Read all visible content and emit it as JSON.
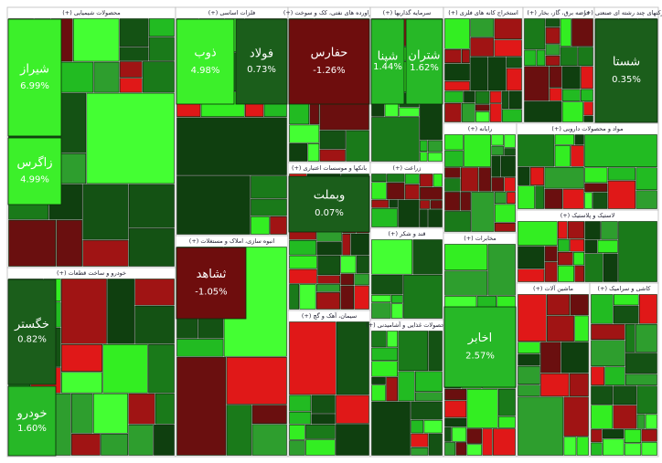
{
  "chart_data": {
    "type": "treemap",
    "sectors": [
      {
        "name": "محصولات شیمیایی (+)",
        "labels": [
          "شیراز",
          "زاگرس"
        ],
        "values": [
          6.99,
          4.99
        ],
        "value_labels": [
          "6.99%",
          "4.99%"
        ]
      },
      {
        "name": "فلزات اساسی (+)",
        "labels": [
          "ذوب",
          "فولاد"
        ],
        "values": [
          4.98,
          0.73
        ],
        "value_labels": [
          "4.98%",
          "0.73%"
        ]
      },
      {
        "name": "فراورده های نفتی، کک و سوخت (+)",
        "labels": [
          "حفارس"
        ],
        "values": [
          -1.26
        ],
        "value_labels": [
          "-1.26%"
        ]
      },
      {
        "name": "سرمایه گذاریها (+)",
        "labels": [
          "شپنا",
          "شتران"
        ],
        "values": [
          1.44,
          1.62
        ],
        "value_labels": [
          "1.44%",
          "1.62%"
        ]
      },
      {
        "name": "استخراج کانه های فلزی (+)"
      },
      {
        "name": "عرضه برق، گاز، بخار (+)"
      },
      {
        "name": "شرکتهای چند رشته ای صنعتی (+)",
        "labels": [
          "شستا"
        ],
        "values": [
          0.35
        ],
        "value_labels": [
          "0.35%"
        ]
      },
      {
        "name": "خودرو و ساخت قطعات (+)",
        "labels": [
          "خگستر",
          "خودرو"
        ],
        "values": [
          0.82,
          1.6
        ],
        "value_labels": [
          "0.82%",
          "1.60%"
        ]
      },
      {
        "name": "انبوه سازی، املاک و مستغلات (+)",
        "labels": [
          "ثشاهد"
        ],
        "values": [
          -1.05
        ],
        "value_labels": [
          "-1.05%"
        ]
      },
      {
        "name": "بانکها و موسسات اعتباری (+)",
        "labels": [
          "وبملت"
        ],
        "values": [
          0.07
        ],
        "value_labels": [
          "0.07%"
        ]
      },
      {
        "name": "زراعت (+)"
      },
      {
        "name": "سیمان، آهک و گچ (+)"
      },
      {
        "name": "رایانه (+)"
      },
      {
        "name": "قند و شکر (+)"
      },
      {
        "name": "محصولات غذایی و آشامیدنی (+)"
      },
      {
        "name": "مخابرات (+)",
        "labels": [
          "اخابر"
        ],
        "values": [
          2.57
        ],
        "value_labels": [
          "2.57%"
        ]
      },
      {
        "name": "مواد و محصولات دارویی (+)"
      },
      {
        "name": "لاستیک و پلاستیک (+)"
      },
      {
        "name": "ماشین آلات (+)"
      },
      {
        "name": "کاشی و سرامیک (+)"
      }
    ]
  }
}
